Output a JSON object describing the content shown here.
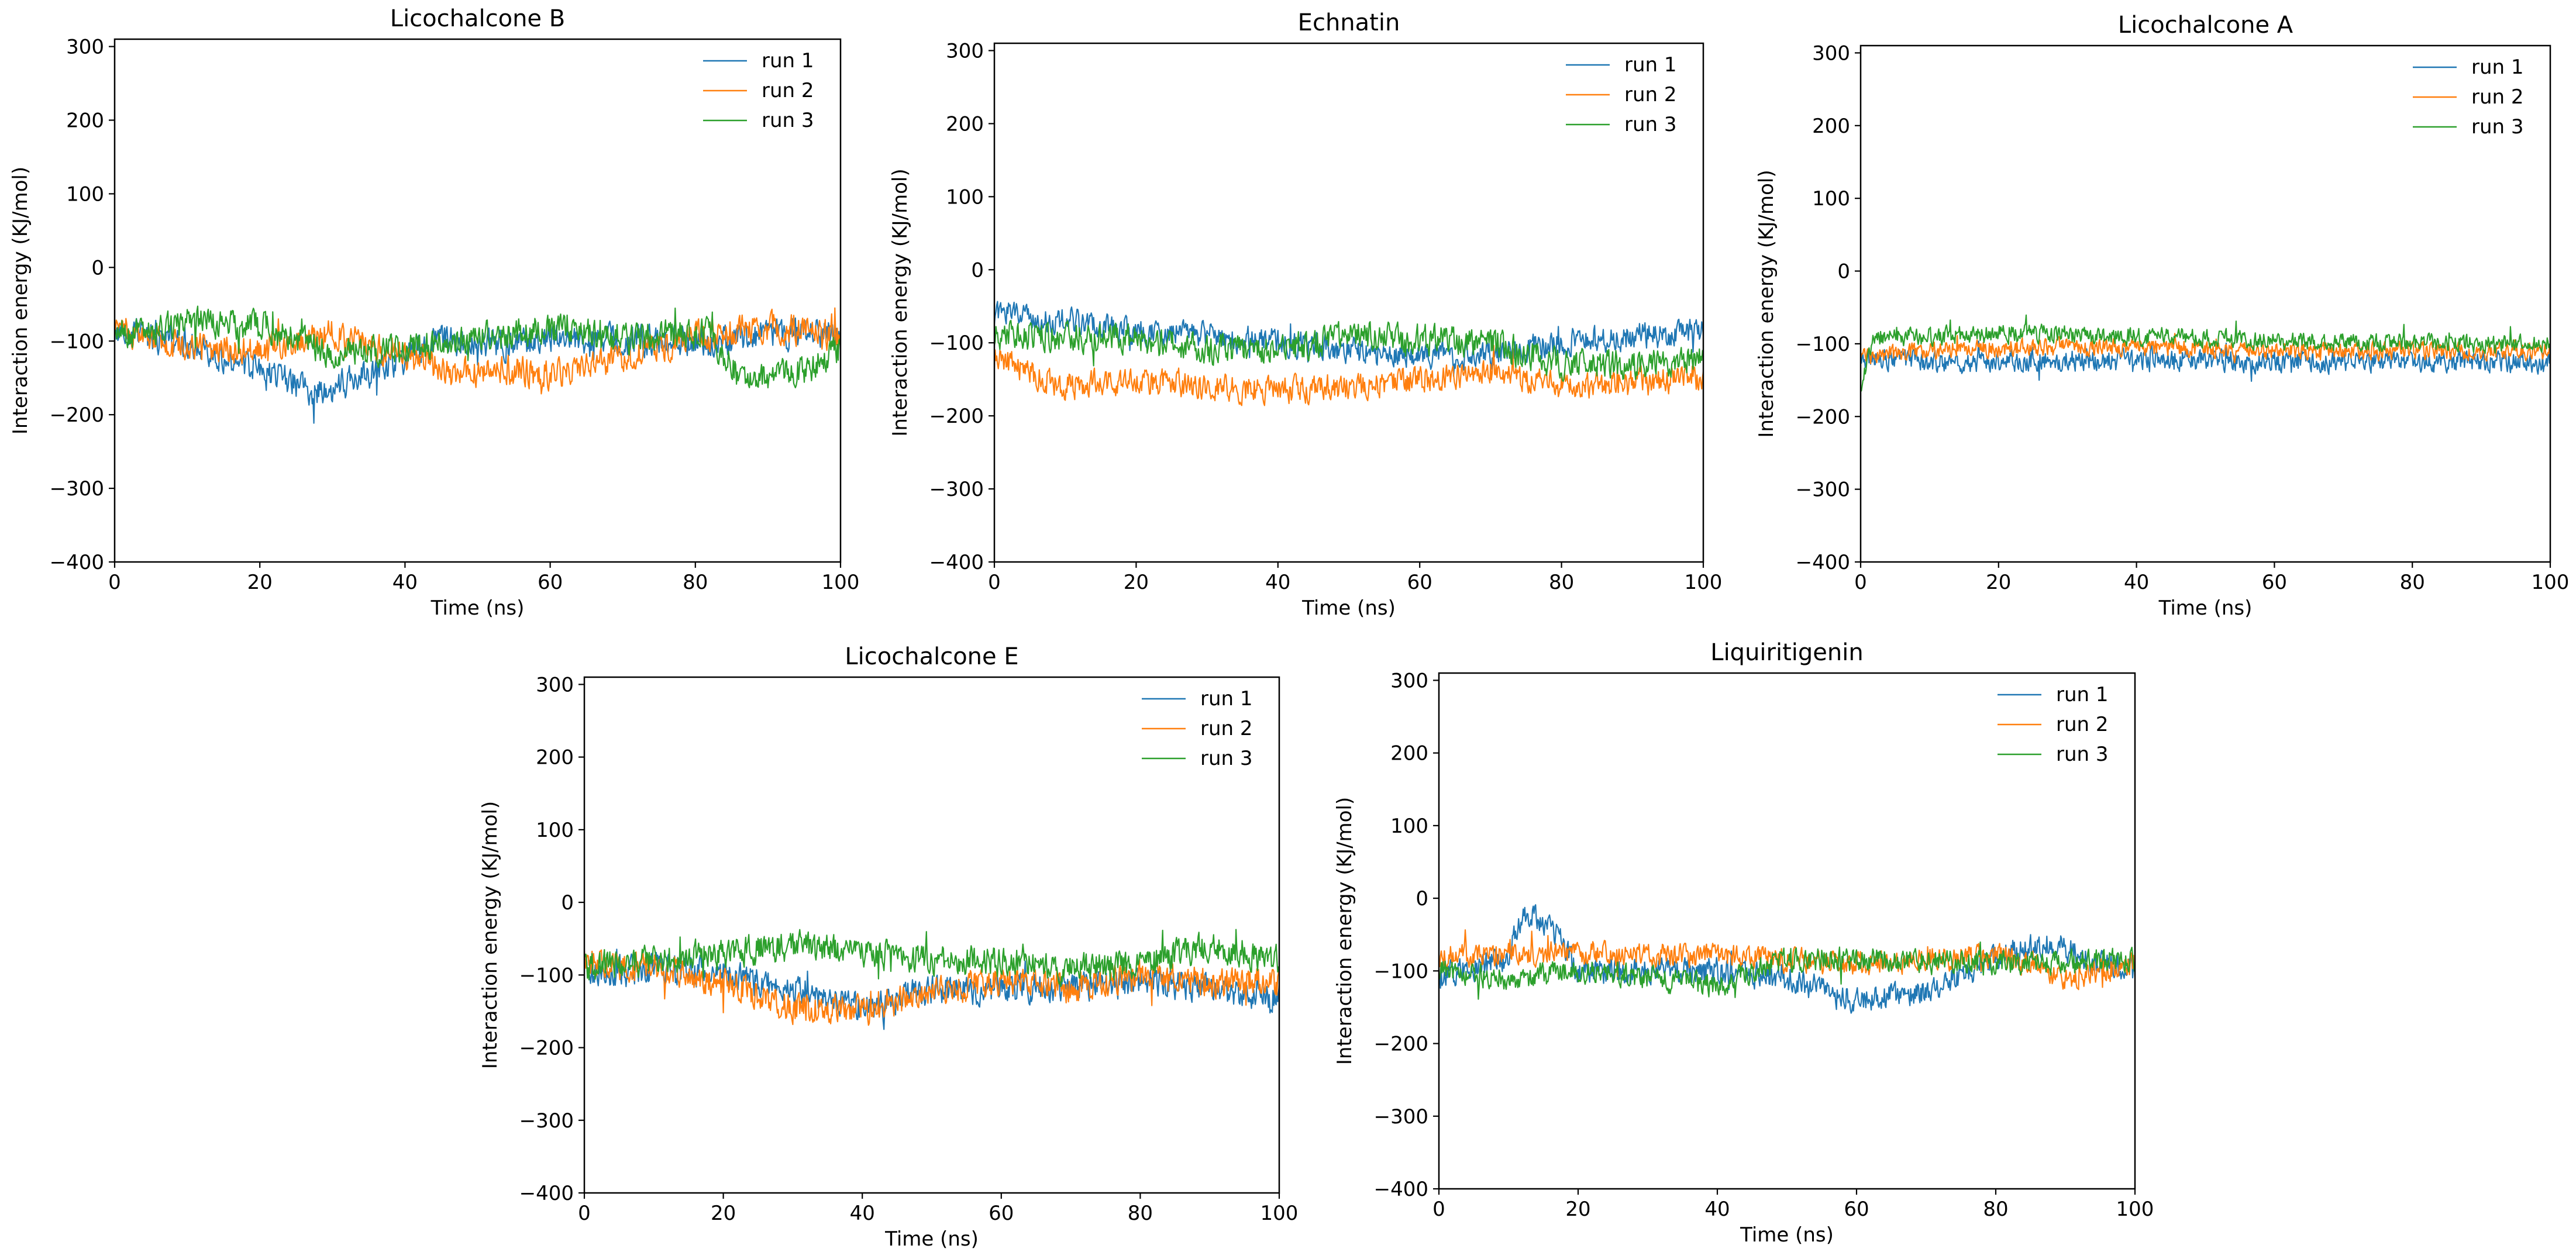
{
  "chart_data": [
    {
      "type": "line",
      "title": "Licochalcone B",
      "xlabel": "Time (ns)",
      "ylabel": "Interaction energy (KJ/mol)",
      "xlim": [
        0,
        100
      ],
      "ylim": [
        -400,
        310
      ],
      "xticks": [
        0,
        20,
        40,
        60,
        80,
        100
      ],
      "yticks": [
        300,
        200,
        100,
        0,
        -100,
        -200,
        -300,
        -400
      ],
      "legend_position": "top-right",
      "series": [
        {
          "name": "run 1",
          "color": "#1f77b4",
          "knots": [
            [
              0,
              -90
            ],
            [
              10,
              -100
            ],
            [
              20,
              -140
            ],
            [
              28,
              -170
            ],
            [
              35,
              -145
            ],
            [
              45,
              -100
            ],
            [
              55,
              -105
            ],
            [
              62,
              -95
            ],
            [
              70,
              -100
            ],
            [
              85,
              -100
            ],
            [
              92,
              -90
            ],
            [
              100,
              -90
            ]
          ],
          "noise": 20
        },
        {
          "name": "run 2",
          "color": "#ff7f0e",
          "knots": [
            [
              0,
              -80
            ],
            [
              10,
              -110
            ],
            [
              20,
              -110
            ],
            [
              30,
              -90
            ],
            [
              40,
              -120
            ],
            [
              47,
              -145
            ],
            [
              55,
              -140
            ],
            [
              62,
              -145
            ],
            [
              70,
              -120
            ],
            [
              80,
              -95
            ],
            [
              90,
              -80
            ],
            [
              100,
              -95
            ]
          ],
          "noise": 20
        },
        {
          "name": "run 3",
          "color": "#2ca02c",
          "knots": [
            [
              0,
              -95
            ],
            [
              10,
              -75
            ],
            [
              20,
              -80
            ],
            [
              30,
              -115
            ],
            [
              40,
              -110
            ],
            [
              50,
              -95
            ],
            [
              60,
              -85
            ],
            [
              70,
              -95
            ],
            [
              82,
              -90
            ],
            [
              86,
              -150
            ],
            [
              95,
              -140
            ],
            [
              100,
              -110
            ]
          ],
          "noise": 20
        }
      ]
    },
    {
      "type": "line",
      "title": "Echnatin",
      "xlabel": "Time (ns)",
      "ylabel": "Interaction energy (KJ/mol)",
      "xlim": [
        0,
        100
      ],
      "ylim": [
        -400,
        310
      ],
      "xticks": [
        0,
        20,
        40,
        60,
        80,
        100
      ],
      "yticks": [
        300,
        200,
        100,
        0,
        -100,
        -200,
        -300,
        -400
      ],
      "legend_position": "top-right",
      "series": [
        {
          "name": "run 1",
          "color": "#1f77b4",
          "knots": [
            [
              0,
              -60
            ],
            [
              10,
              -70
            ],
            [
              20,
              -85
            ],
            [
              30,
              -90
            ],
            [
              40,
              -100
            ],
            [
              50,
              -110
            ],
            [
              60,
              -120
            ],
            [
              70,
              -115
            ],
            [
              80,
              -100
            ],
            [
              90,
              -90
            ],
            [
              100,
              -85
            ]
          ],
          "noise": 18
        },
        {
          "name": "run 2",
          "color": "#ff7f0e",
          "knots": [
            [
              0,
              -120
            ],
            [
              10,
              -160
            ],
            [
              20,
              -150
            ],
            [
              30,
              -160
            ],
            [
              40,
              -165
            ],
            [
              50,
              -160
            ],
            [
              60,
              -150
            ],
            [
              70,
              -140
            ],
            [
              80,
              -160
            ],
            [
              90,
              -155
            ],
            [
              100,
              -150
            ]
          ],
          "noise": 18
        },
        {
          "name": "run 3",
          "color": "#2ca02c",
          "knots": [
            [
              0,
              -90
            ],
            [
              10,
              -90
            ],
            [
              20,
              -95
            ],
            [
              30,
              -110
            ],
            [
              40,
              -110
            ],
            [
              50,
              -90
            ],
            [
              60,
              -95
            ],
            [
              70,
              -100
            ],
            [
              80,
              -130
            ],
            [
              90,
              -130
            ],
            [
              100,
              -120
            ]
          ],
          "noise": 20
        }
      ]
    },
    {
      "type": "line",
      "title": "Licochalcone A",
      "xlabel": "Time (ns)",
      "ylabel": "Interaction energy (KJ/mol)",
      "xlim": [
        0,
        100
      ],
      "ylim": [
        -400,
        310
      ],
      "xticks": [
        0,
        20,
        40,
        60,
        80,
        100
      ],
      "yticks": [
        300,
        200,
        100,
        0,
        -100,
        -200,
        -300,
        -400
      ],
      "legend_position": "top-right",
      "series": [
        {
          "name": "run 1",
          "color": "#1f77b4",
          "knots": [
            [
              0,
              -120
            ],
            [
              10,
              -125
            ],
            [
              20,
              -125
            ],
            [
              40,
              -120
            ],
            [
              60,
              -125
            ],
            [
              80,
              -125
            ],
            [
              100,
              -125
            ]
          ],
          "noise": 14
        },
        {
          "name": "run 2",
          "color": "#ff7f0e",
          "knots": [
            [
              0,
              -120
            ],
            [
              10,
              -110
            ],
            [
              20,
              -105
            ],
            [
              40,
              -105
            ],
            [
              60,
              -110
            ],
            [
              80,
              -110
            ],
            [
              100,
              -110
            ]
          ],
          "noise": 12
        },
        {
          "name": "run 3",
          "color": "#2ca02c",
          "knots": [
            [
              0,
              -160
            ],
            [
              2,
              -90
            ],
            [
              10,
              -90
            ],
            [
              20,
              -85
            ],
            [
              40,
              -90
            ],
            [
              60,
              -95
            ],
            [
              80,
              -100
            ],
            [
              100,
              -100
            ]
          ],
          "noise": 12
        }
      ]
    },
    {
      "type": "line",
      "title": "Licochalcone E",
      "xlabel": "Time (ns)",
      "ylabel": "Interaction energy (KJ/mol)",
      "xlim": [
        0,
        100
      ],
      "ylim": [
        -400,
        310
      ],
      "xticks": [
        0,
        20,
        40,
        60,
        80,
        100
      ],
      "yticks": [
        300,
        200,
        100,
        0,
        -100,
        -200,
        -300,
        -400
      ],
      "legend_position": "top-right",
      "series": [
        {
          "name": "run 1",
          "color": "#1f77b4",
          "knots": [
            [
              0,
              -100
            ],
            [
              10,
              -90
            ],
            [
              20,
              -100
            ],
            [
              30,
              -120
            ],
            [
              40,
              -145
            ],
            [
              50,
              -120
            ],
            [
              60,
              -120
            ],
            [
              70,
              -115
            ],
            [
              80,
              -110
            ],
            [
              90,
              -120
            ],
            [
              100,
              -130
            ]
          ],
          "noise": 20
        },
        {
          "name": "run 2",
          "color": "#ff7f0e",
          "knots": [
            [
              0,
              -80
            ],
            [
              10,
              -90
            ],
            [
              20,
              -110
            ],
            [
              30,
              -145
            ],
            [
              40,
              -150
            ],
            [
              50,
              -120
            ],
            [
              60,
              -110
            ],
            [
              70,
              -120
            ],
            [
              80,
              -100
            ],
            [
              90,
              -110
            ],
            [
              100,
              -110
            ]
          ],
          "noise": 20
        },
        {
          "name": "run 3",
          "color": "#2ca02c",
          "knots": [
            [
              0,
              -90
            ],
            [
              10,
              -80
            ],
            [
              20,
              -70
            ],
            [
              30,
              -60
            ],
            [
              40,
              -70
            ],
            [
              50,
              -80
            ],
            [
              60,
              -80
            ],
            [
              70,
              -90
            ],
            [
              80,
              -85
            ],
            [
              90,
              -60
            ],
            [
              100,
              -80
            ]
          ],
          "noise": 20
        }
      ]
    },
    {
      "type": "line",
      "title": "Liquiritigenin",
      "xlabel": "Time (ns)",
      "ylabel": "Interaction energy (KJ/mol)",
      "xlim": [
        0,
        100
      ],
      "ylim": [
        -400,
        310
      ],
      "xticks": [
        0,
        20,
        40,
        60,
        80,
        100
      ],
      "yticks": [
        300,
        200,
        100,
        0,
        -100,
        -200,
        -300,
        -400
      ],
      "legend_position": "top-right",
      "series": [
        {
          "name": "run 1",
          "color": "#1f77b4",
          "knots": [
            [
              0,
              -110
            ],
            [
              10,
              -80
            ],
            [
              12,
              -20
            ],
            [
              16,
              -40
            ],
            [
              20,
              -100
            ],
            [
              30,
              -100
            ],
            [
              40,
              -100
            ],
            [
              50,
              -110
            ],
            [
              60,
              -140
            ],
            [
              70,
              -130
            ],
            [
              80,
              -80
            ],
            [
              88,
              -60
            ],
            [
              95,
              -90
            ],
            [
              100,
              -100
            ]
          ],
          "noise": 18
        },
        {
          "name": "run 2",
          "color": "#ff7f0e",
          "knots": [
            [
              0,
              -80
            ],
            [
              20,
              -75
            ],
            [
              40,
              -80
            ],
            [
              60,
              -90
            ],
            [
              80,
              -80
            ],
            [
              90,
              -110
            ],
            [
              100,
              -90
            ]
          ],
          "noise": 16
        },
        {
          "name": "run 3",
          "color": "#2ca02c",
          "knots": [
            [
              0,
              -100
            ],
            [
              10,
              -110
            ],
            [
              20,
              -100
            ],
            [
              30,
              -110
            ],
            [
              40,
              -120
            ],
            [
              50,
              -85
            ],
            [
              60,
              -85
            ],
            [
              80,
              -90
            ],
            [
              100,
              -85
            ]
          ],
          "noise": 16
        }
      ]
    }
  ]
}
